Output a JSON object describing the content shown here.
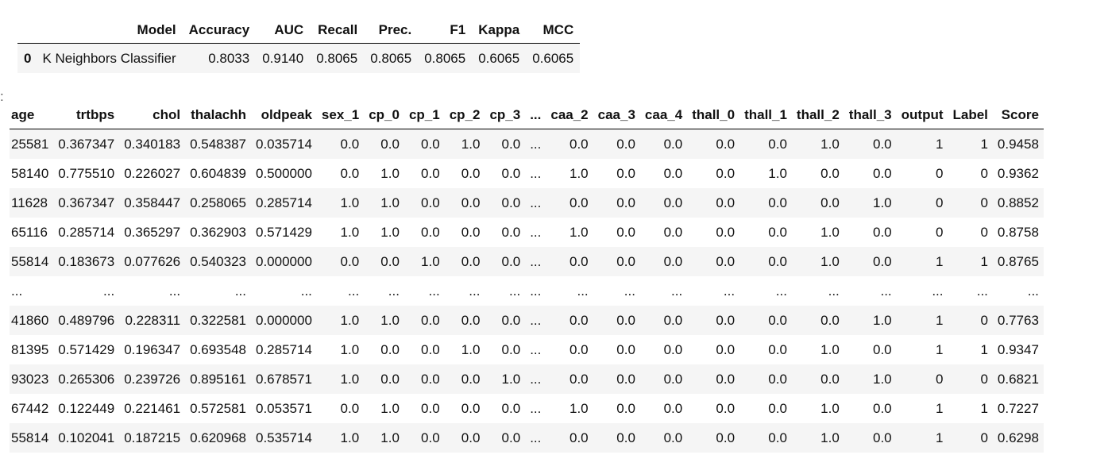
{
  "metrics": {
    "columns": [
      "",
      "Model",
      "Accuracy",
      "AUC",
      "Recall",
      "Prec.",
      "F1",
      "Kappa",
      "MCC"
    ],
    "rows": [
      [
        "0",
        "K Neighbors Classifier",
        "0.8033",
        "0.9140",
        "0.8065",
        "0.8065",
        "0.8065",
        "0.6065",
        "0.6065"
      ]
    ]
  },
  "marker": ":",
  "data": {
    "columns": [
      "age",
      "trtbps",
      "chol",
      "thalachh",
      "oldpeak",
      "sex_1",
      "cp_0",
      "cp_1",
      "cp_2",
      "cp_3",
      "...",
      "caa_2",
      "caa_3",
      "caa_4",
      "thall_0",
      "thall_1",
      "thall_2",
      "thall_3",
      "output",
      "Label",
      "Score"
    ],
    "rows": [
      [
        "25581",
        "0.367347",
        "0.340183",
        "0.548387",
        "0.035714",
        "0.0",
        "0.0",
        "0.0",
        "1.0",
        "0.0",
        "...",
        "0.0",
        "0.0",
        "0.0",
        "0.0",
        "0.0",
        "1.0",
        "0.0",
        "1",
        "1",
        "0.9458"
      ],
      [
        "58140",
        "0.775510",
        "0.226027",
        "0.604839",
        "0.500000",
        "0.0",
        "1.0",
        "0.0",
        "0.0",
        "0.0",
        "...",
        "1.0",
        "0.0",
        "0.0",
        "0.0",
        "1.0",
        "0.0",
        "0.0",
        "0",
        "0",
        "0.9362"
      ],
      [
        "11628",
        "0.367347",
        "0.358447",
        "0.258065",
        "0.285714",
        "1.0",
        "1.0",
        "0.0",
        "0.0",
        "0.0",
        "...",
        "0.0",
        "0.0",
        "0.0",
        "0.0",
        "0.0",
        "0.0",
        "1.0",
        "0",
        "0",
        "0.8852"
      ],
      [
        "65116",
        "0.285714",
        "0.365297",
        "0.362903",
        "0.571429",
        "1.0",
        "1.0",
        "0.0",
        "0.0",
        "0.0",
        "...",
        "1.0",
        "0.0",
        "0.0",
        "0.0",
        "0.0",
        "1.0",
        "0.0",
        "0",
        "0",
        "0.8758"
      ],
      [
        "55814",
        "0.183673",
        "0.077626",
        "0.540323",
        "0.000000",
        "0.0",
        "0.0",
        "1.0",
        "0.0",
        "0.0",
        "...",
        "0.0",
        "0.0",
        "0.0",
        "0.0",
        "0.0",
        "1.0",
        "0.0",
        "1",
        "1",
        "0.8765"
      ],
      [
        "...",
        "...",
        "...",
        "...",
        "...",
        "...",
        "...",
        "...",
        "...",
        "...",
        "...",
        "...",
        "...",
        "...",
        "...",
        "...",
        "...",
        "...",
        "...",
        "...",
        "..."
      ],
      [
        "41860",
        "0.489796",
        "0.228311",
        "0.322581",
        "0.000000",
        "1.0",
        "1.0",
        "0.0",
        "0.0",
        "0.0",
        "...",
        "0.0",
        "0.0",
        "0.0",
        "0.0",
        "0.0",
        "0.0",
        "1.0",
        "1",
        "0",
        "0.7763"
      ],
      [
        "81395",
        "0.571429",
        "0.196347",
        "0.693548",
        "0.285714",
        "1.0",
        "0.0",
        "0.0",
        "1.0",
        "0.0",
        "...",
        "0.0",
        "0.0",
        "0.0",
        "0.0",
        "0.0",
        "1.0",
        "0.0",
        "1",
        "1",
        "0.9347"
      ],
      [
        "93023",
        "0.265306",
        "0.239726",
        "0.895161",
        "0.678571",
        "1.0",
        "0.0",
        "0.0",
        "0.0",
        "1.0",
        "...",
        "0.0",
        "0.0",
        "0.0",
        "0.0",
        "0.0",
        "0.0",
        "1.0",
        "0",
        "0",
        "0.6821"
      ],
      [
        "67442",
        "0.122449",
        "0.221461",
        "0.572581",
        "0.053571",
        "0.0",
        "1.0",
        "0.0",
        "0.0",
        "0.0",
        "...",
        "1.0",
        "0.0",
        "0.0",
        "0.0",
        "0.0",
        "1.0",
        "0.0",
        "1",
        "1",
        "0.7227"
      ],
      [
        "55814",
        "0.102041",
        "0.187215",
        "0.620968",
        "0.535714",
        "1.0",
        "1.0",
        "0.0",
        "0.0",
        "0.0",
        "...",
        "0.0",
        "0.0",
        "0.0",
        "0.0",
        "0.0",
        "1.0",
        "0.0",
        "1",
        "0",
        "0.6298"
      ]
    ]
  }
}
